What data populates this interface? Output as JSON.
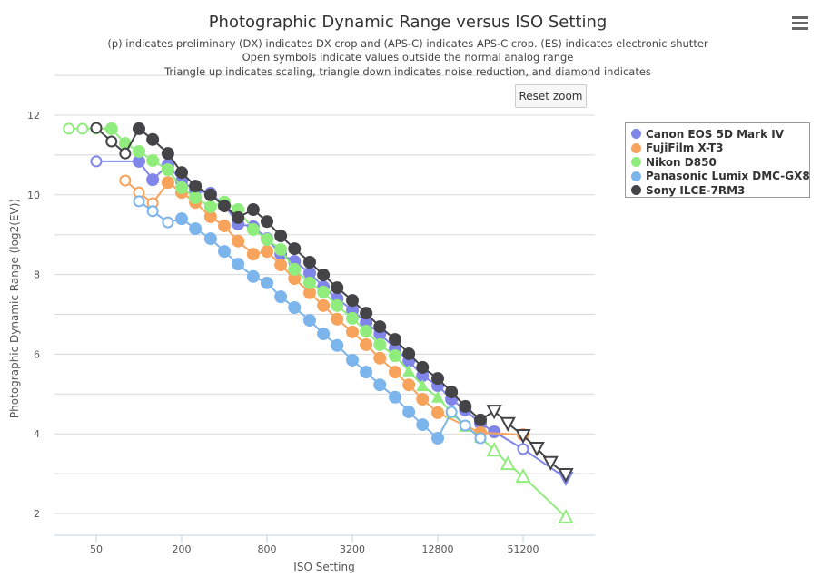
{
  "chart_data": {
    "type": "line",
    "title": "Photographic Dynamic Range versus ISO Setting",
    "subtitles": [
      "(p) indicates preliminary (DX) indicates DX crop and (APS-C) indicates APS-C crop. (ES) indicates electronic shutter",
      "Open symbols indicate values outside the normal analog range",
      "Triangle up indicates scaling, triangle down indicates noise reduction, and diamond indicates"
    ],
    "xlabel": "ISO Setting",
    "ylabel": "Photographic Dynamic Range (log2(EV))",
    "x_scale": "log2",
    "xlim": [
      25,
      165000
    ],
    "ylim": [
      1.45,
      13
    ],
    "x_ticks": [
      50,
      200,
      800,
      3200,
      12800,
      51200
    ],
    "x_tick_labels": [
      "50",
      "200",
      "800",
      "3200",
      "12800",
      "51200"
    ],
    "y_ticks": [
      2,
      4,
      6,
      8,
      10,
      12
    ],
    "y_tick_labels": [
      "2",
      "4",
      "6",
      "8",
      "10",
      "12"
    ],
    "grid": true,
    "legend_position": "top-right",
    "marker_legend": {
      "o": "filled circle",
      "oo": "open circle",
      "t": "filled triangle up",
      "to": "open triangle up",
      "vo": "open triangle down"
    },
    "series": [
      {
        "name": "Canon EOS 5D Mark IV",
        "color": "#8085e9",
        "points": [
          [
            50,
            10.84,
            "oo"
          ],
          [
            100,
            10.84,
            "o"
          ],
          [
            125,
            10.38,
            "o"
          ],
          [
            160,
            10.75,
            "o"
          ],
          [
            200,
            10.34,
            "o"
          ],
          [
            250,
            10.11,
            "o"
          ],
          [
            320,
            10.04,
            "o"
          ],
          [
            400,
            9.75,
            "o"
          ],
          [
            500,
            9.27,
            "o"
          ],
          [
            640,
            9.2,
            "o"
          ],
          [
            800,
            8.9,
            "o"
          ],
          [
            1000,
            8.51,
            "o"
          ],
          [
            1250,
            8.33,
            "o"
          ],
          [
            1600,
            8.04,
            "o"
          ],
          [
            2000,
            7.69,
            "o"
          ],
          [
            2500,
            7.4,
            "o"
          ],
          [
            3200,
            7.1,
            "o"
          ],
          [
            4000,
            6.79,
            "o"
          ],
          [
            5000,
            6.51,
            "o"
          ],
          [
            6400,
            6.15,
            "o"
          ],
          [
            8000,
            5.83,
            "o"
          ],
          [
            10000,
            5.46,
            "o"
          ],
          [
            12800,
            5.21,
            "o"
          ],
          [
            16000,
            4.87,
            "o"
          ],
          [
            20000,
            4.6,
            "o"
          ],
          [
            25600,
            4.26,
            "o"
          ],
          [
            32000,
            4.05,
            "o"
          ],
          [
            51200,
            3.62,
            "oo"
          ],
          [
            102400,
            2.89,
            "vo"
          ]
        ]
      },
      {
        "name": "FujiFilm X-T3",
        "color": "#f7a35c",
        "points": [
          [
            80,
            10.36,
            "oo"
          ],
          [
            100,
            10.06,
            "oo"
          ],
          [
            125,
            9.79,
            "oo"
          ],
          [
            160,
            10.31,
            "o"
          ],
          [
            200,
            10.06,
            "o"
          ],
          [
            250,
            9.81,
            "o"
          ],
          [
            320,
            9.45,
            "o"
          ],
          [
            400,
            9.22,
            "o"
          ],
          [
            500,
            8.84,
            "o"
          ],
          [
            640,
            8.51,
            "o"
          ],
          [
            800,
            8.58,
            "o"
          ],
          [
            1000,
            8.24,
            "o"
          ],
          [
            1250,
            7.9,
            "o"
          ],
          [
            1600,
            7.54,
            "o"
          ],
          [
            2000,
            7.22,
            "o"
          ],
          [
            2500,
            6.88,
            "o"
          ],
          [
            3200,
            6.56,
            "o"
          ],
          [
            4000,
            6.24,
            "o"
          ],
          [
            5000,
            5.9,
            "o"
          ],
          [
            6400,
            5.55,
            "o"
          ],
          [
            8000,
            5.23,
            "o"
          ],
          [
            10000,
            4.87,
            "o"
          ],
          [
            12800,
            4.53,
            "o"
          ],
          [
            25600,
            4.03,
            "o"
          ],
          [
            51200,
            3.98,
            "o"
          ]
        ]
      },
      {
        "name": "Nikon D850",
        "color": "#90ed7d",
        "points": [
          [
            32,
            11.66,
            "oo"
          ],
          [
            40,
            11.66,
            "oo"
          ],
          [
            50,
            11.66,
            "oo"
          ],
          [
            64,
            11.66,
            "o"
          ],
          [
            80,
            11.29,
            "o"
          ],
          [
            100,
            11.09,
            "o"
          ],
          [
            125,
            10.86,
            "o"
          ],
          [
            160,
            10.63,
            "o"
          ],
          [
            200,
            10.18,
            "o"
          ],
          [
            250,
            9.93,
            "o"
          ],
          [
            320,
            9.7,
            "o"
          ],
          [
            400,
            9.82,
            "o"
          ],
          [
            500,
            9.63,
            "o"
          ],
          [
            640,
            9.13,
            "o"
          ],
          [
            800,
            8.88,
            "o"
          ],
          [
            1000,
            8.63,
            "o"
          ],
          [
            1250,
            8.13,
            "o"
          ],
          [
            1600,
            7.79,
            "o"
          ],
          [
            2000,
            7.56,
            "o"
          ],
          [
            2500,
            7.22,
            "o"
          ],
          [
            3200,
            6.9,
            "o"
          ],
          [
            4000,
            6.58,
            "o"
          ],
          [
            5000,
            6.24,
            "o"
          ],
          [
            6400,
            5.96,
            "o"
          ],
          [
            8000,
            5.58,
            "t"
          ],
          [
            10000,
            5.21,
            "t"
          ],
          [
            12800,
            4.92,
            "t"
          ],
          [
            16000,
            4.53,
            "t"
          ],
          [
            20000,
            4.19,
            "t"
          ],
          [
            25600,
            3.91,
            "t"
          ],
          [
            32000,
            3.59,
            "to"
          ],
          [
            40000,
            3.25,
            "to"
          ],
          [
            51200,
            2.93,
            "to"
          ],
          [
            102400,
            1.91,
            "to"
          ]
        ]
      },
      {
        "name": "Panasonic Lumix DMC-GX8",
        "color": "#7cb5ec",
        "points": [
          [
            100,
            9.84,
            "oo"
          ],
          [
            125,
            9.59,
            "oo"
          ],
          [
            160,
            9.31,
            "oo"
          ],
          [
            200,
            9.4,
            "o"
          ],
          [
            250,
            9.15,
            "o"
          ],
          [
            320,
            8.9,
            "o"
          ],
          [
            400,
            8.58,
            "o"
          ],
          [
            500,
            8.26,
            "o"
          ],
          [
            640,
            7.95,
            "o"
          ],
          [
            800,
            7.79,
            "o"
          ],
          [
            1000,
            7.44,
            "o"
          ],
          [
            1250,
            7.17,
            "o"
          ],
          [
            1600,
            6.85,
            "o"
          ],
          [
            2000,
            6.51,
            "o"
          ],
          [
            2500,
            6.22,
            "o"
          ],
          [
            3200,
            5.85,
            "o"
          ],
          [
            4000,
            5.55,
            "o"
          ],
          [
            5000,
            5.23,
            "o"
          ],
          [
            6400,
            4.92,
            "o"
          ],
          [
            8000,
            4.55,
            "o"
          ],
          [
            10000,
            4.23,
            "o"
          ],
          [
            12800,
            3.89,
            "o"
          ],
          [
            16000,
            4.55,
            "oo"
          ],
          [
            20000,
            4.21,
            "oo"
          ],
          [
            25600,
            3.89,
            "oo"
          ]
        ]
      },
      {
        "name": "Sony ILCE-7RM3",
        "color": "#434348",
        "points": [
          [
            50,
            11.68,
            "oo"
          ],
          [
            64,
            11.34,
            "oo"
          ],
          [
            80,
            11.04,
            "oo"
          ],
          [
            100,
            11.66,
            "o"
          ],
          [
            125,
            11.39,
            "o"
          ],
          [
            160,
            11.04,
            "o"
          ],
          [
            200,
            10.56,
            "o"
          ],
          [
            250,
            10.22,
            "o"
          ],
          [
            320,
            10.0,
            "o"
          ],
          [
            400,
            9.72,
            "o"
          ],
          [
            500,
            9.43,
            "o"
          ],
          [
            640,
            9.63,
            "o"
          ],
          [
            800,
            9.33,
            "o"
          ],
          [
            1000,
            8.97,
            "o"
          ],
          [
            1250,
            8.65,
            "o"
          ],
          [
            1600,
            8.31,
            "o"
          ],
          [
            2000,
            7.99,
            "o"
          ],
          [
            2500,
            7.67,
            "o"
          ],
          [
            3200,
            7.35,
            "o"
          ],
          [
            4000,
            7.03,
            "o"
          ],
          [
            5000,
            6.69,
            "o"
          ],
          [
            6400,
            6.37,
            "o"
          ],
          [
            8000,
            6.01,
            "o"
          ],
          [
            10000,
            5.67,
            "o"
          ],
          [
            12800,
            5.39,
            "o"
          ],
          [
            16000,
            5.05,
            "o"
          ],
          [
            20000,
            4.69,
            "o"
          ],
          [
            25600,
            4.35,
            "o"
          ],
          [
            32000,
            4.57,
            "vo"
          ],
          [
            40000,
            4.26,
            "vo"
          ],
          [
            51200,
            3.96,
            "vo"
          ],
          [
            64000,
            3.64,
            "vo"
          ],
          [
            80000,
            3.28,
            "vo"
          ],
          [
            102400,
            2.98,
            "vo"
          ]
        ]
      }
    ]
  },
  "ui": {
    "reset_zoom": "Reset zoom",
    "menu_icon": "hamburger-menu-icon"
  }
}
